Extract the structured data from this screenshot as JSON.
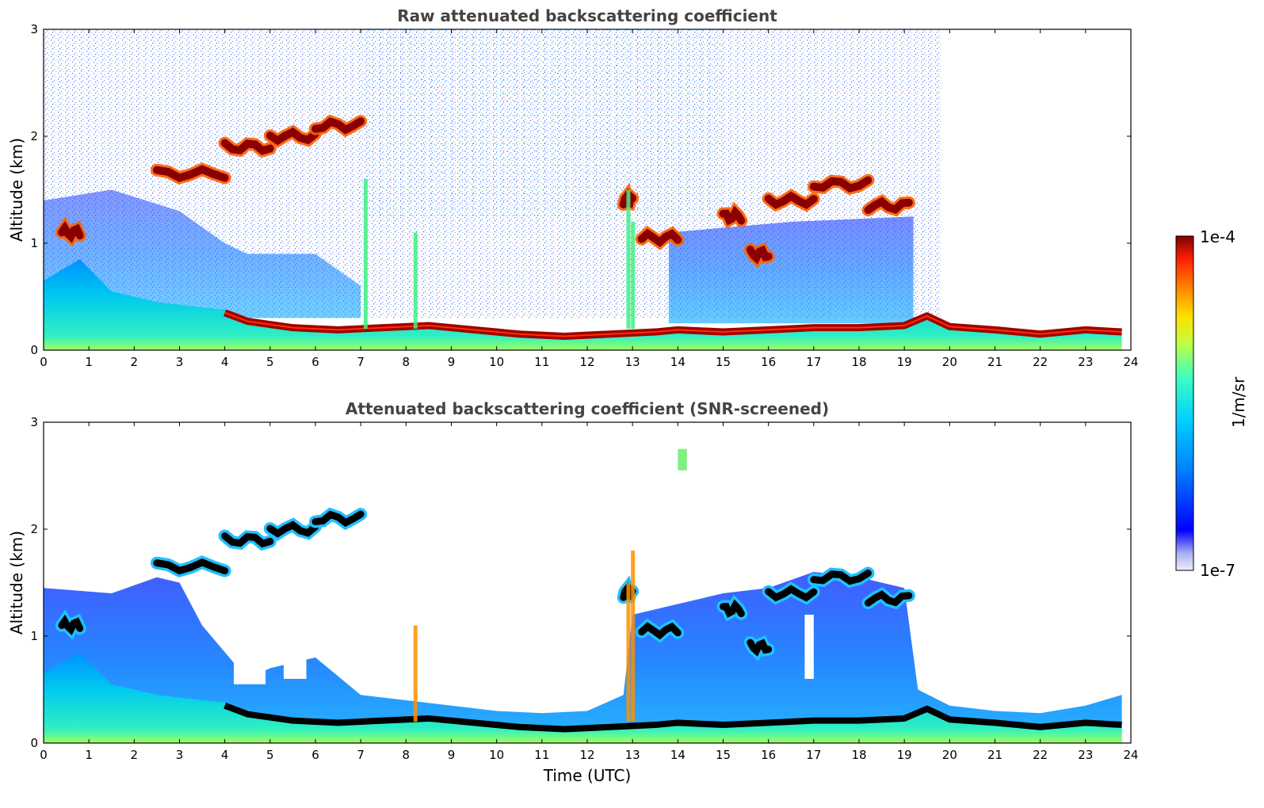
{
  "chart_data": [
    {
      "type": "heatmap",
      "title": "Raw attenuated backscattering coefficient",
      "xlabel": "",
      "ylabel": "Altitude (km)",
      "xlim": [
        0,
        24
      ],
      "ylim": [
        0,
        3
      ],
      "xticks": [
        "0",
        "1",
        "2",
        "3",
        "4",
        "5",
        "6",
        "7",
        "8",
        "9",
        "10",
        "11",
        "12",
        "13",
        "14",
        "15",
        "16",
        "17",
        "18",
        "19",
        "20",
        "21",
        "22",
        "23",
        "24"
      ],
      "yticks": [
        "0",
        "1",
        "2",
        "3"
      ],
      "grid": false,
      "boundary_layer_top_km": [
        [
          0,
          0.65
        ],
        [
          0.8,
          0.85
        ],
        [
          1.5,
          0.55
        ],
        [
          2.5,
          0.45
        ],
        [
          3.5,
          0.4
        ],
        [
          4,
          0.38
        ],
        [
          4.5,
          0.3
        ],
        [
          5.5,
          0.24
        ],
        [
          6.5,
          0.22
        ],
        [
          7.5,
          0.24
        ],
        [
          8.5,
          0.26
        ],
        [
          9.5,
          0.22
        ],
        [
          10.5,
          0.18
        ],
        [
          11.5,
          0.16
        ],
        [
          12.5,
          0.18
        ],
        [
          13.5,
          0.2
        ],
        [
          14,
          0.22
        ],
        [
          15,
          0.2
        ],
        [
          16,
          0.22
        ],
        [
          17,
          0.24
        ],
        [
          18,
          0.24
        ],
        [
          19,
          0.26
        ],
        [
          19.5,
          0.35
        ],
        [
          20,
          0.25
        ],
        [
          21,
          0.22
        ],
        [
          22,
          0.18
        ],
        [
          23,
          0.22
        ],
        [
          23.8,
          0.2
        ]
      ],
      "cloud_layers_km": [
        {
          "t_start": 0.4,
          "t_end": 0.8,
          "alt": 1.1
        },
        {
          "t_start": 2.5,
          "t_end": 4.0,
          "alt": 1.65
        },
        {
          "t_start": 4.0,
          "t_end": 5.0,
          "alt": 1.9
        },
        {
          "t_start": 5.0,
          "t_end": 6.0,
          "alt": 2.0
        },
        {
          "t_start": 6.0,
          "t_end": 7.0,
          "alt": 2.1
        },
        {
          "t_start": 12.8,
          "t_end": 13.0,
          "alt": 1.4
        },
        {
          "t_start": 13.2,
          "t_end": 14.0,
          "alt": 1.05
        },
        {
          "t_start": 15.0,
          "t_end": 15.4,
          "alt": 1.25
        },
        {
          "t_start": 15.6,
          "t_end": 16.0,
          "alt": 0.9
        },
        {
          "t_start": 16.0,
          "t_end": 17.0,
          "alt": 1.4
        },
        {
          "t_start": 17.0,
          "t_end": 18.2,
          "alt": 1.55
        },
        {
          "t_start": 18.2,
          "t_end": 19.1,
          "alt": 1.35
        }
      ]
    },
    {
      "type": "heatmap",
      "title": "Attenuated backscattering coefficient (SNR-screened)",
      "xlabel": "Time (UTC)",
      "ylabel": "Altitude (km)",
      "xlim": [
        0,
        24
      ],
      "ylim": [
        0,
        3
      ],
      "xticks": [
        "0",
        "1",
        "2",
        "3",
        "4",
        "5",
        "6",
        "7",
        "8",
        "9",
        "10",
        "11",
        "12",
        "13",
        "14",
        "15",
        "16",
        "17",
        "18",
        "19",
        "20",
        "21",
        "22",
        "23",
        "24"
      ],
      "yticks": [
        "0",
        "1",
        "2",
        "3"
      ],
      "grid": false,
      "signal_top_km": [
        [
          0,
          1.45
        ],
        [
          1.5,
          1.4
        ],
        [
          2.5,
          1.55
        ],
        [
          3,
          1.5
        ],
        [
          3.5,
          1.1
        ],
        [
          4.5,
          0.6
        ],
        [
          5,
          0.7
        ],
        [
          6,
          0.8
        ],
        [
          7,
          0.45
        ],
        [
          8,
          0.4
        ],
        [
          9,
          0.35
        ],
        [
          10,
          0.3
        ],
        [
          11,
          0.28
        ],
        [
          12,
          0.3
        ],
        [
          12.8,
          0.45
        ],
        [
          13,
          1.2
        ],
        [
          14,
          1.3
        ],
        [
          15,
          1.4
        ],
        [
          16,
          1.45
        ],
        [
          17,
          1.6
        ],
        [
          18,
          1.55
        ],
        [
          19,
          1.45
        ],
        [
          19.3,
          0.5
        ],
        [
          20,
          0.35
        ],
        [
          21,
          0.3
        ],
        [
          22,
          0.28
        ],
        [
          23,
          0.35
        ],
        [
          23.8,
          0.45
        ]
      ]
    }
  ],
  "colorbar": {
    "label": "1/m/sr",
    "max_label": "1e-4",
    "min_label": "1e-7",
    "scale": "log",
    "colormap": "jet",
    "stops": [
      "#eeeeff",
      "#aab0f0",
      "#0000ff",
      "#0080ff",
      "#00d0ff",
      "#40ffc0",
      "#c0ff40",
      "#ffe000",
      "#ff8000",
      "#ff2000",
      "#800000"
    ]
  }
}
